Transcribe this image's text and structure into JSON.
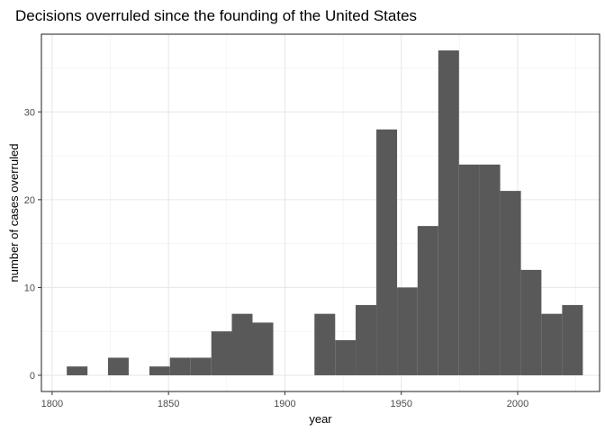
{
  "chart_data": {
    "type": "bar",
    "title": "Decisions overruled since the founding of the United States",
    "xlabel": "year",
    "ylabel": "number of cases overruled",
    "xlim": [
      1795.4,
      2035.2
    ],
    "ylim": [
      -1.85,
      38.85
    ],
    "x_ticks": [
      1800,
      1850,
      1900,
      1950,
      2000
    ],
    "y_ticks": [
      0,
      10,
      20,
      30
    ],
    "grid": true,
    "legend": "none",
    "bar_color": "#595959",
    "bins": [
      {
        "start": 1806.3,
        "end": 1815.2,
        "value": 1
      },
      {
        "start": 1815.2,
        "end": 1824.0,
        "value": 0
      },
      {
        "start": 1824.0,
        "end": 1832.9,
        "value": 2
      },
      {
        "start": 1832.9,
        "end": 1841.8,
        "value": 0
      },
      {
        "start": 1841.8,
        "end": 1850.6,
        "value": 1
      },
      {
        "start": 1850.6,
        "end": 1859.5,
        "value": 2
      },
      {
        "start": 1859.5,
        "end": 1868.4,
        "value": 2
      },
      {
        "start": 1868.4,
        "end": 1877.2,
        "value": 5
      },
      {
        "start": 1877.2,
        "end": 1886.1,
        "value": 7
      },
      {
        "start": 1886.1,
        "end": 1895.0,
        "value": 6
      },
      {
        "start": 1895.0,
        "end": 1903.8,
        "value": 0
      },
      {
        "start": 1903.8,
        "end": 1912.7,
        "value": 0
      },
      {
        "start": 1912.7,
        "end": 1921.6,
        "value": 7
      },
      {
        "start": 1921.6,
        "end": 1930.4,
        "value": 4
      },
      {
        "start": 1930.4,
        "end": 1939.3,
        "value": 8
      },
      {
        "start": 1939.3,
        "end": 1948.2,
        "value": 28
      },
      {
        "start": 1948.2,
        "end": 1957.0,
        "value": 10
      },
      {
        "start": 1957.0,
        "end": 1965.9,
        "value": 17
      },
      {
        "start": 1965.9,
        "end": 1974.8,
        "value": 37
      },
      {
        "start": 1974.8,
        "end": 1983.6,
        "value": 24
      },
      {
        "start": 1983.6,
        "end": 1992.5,
        "value": 24
      },
      {
        "start": 1992.5,
        "end": 2001.4,
        "value": 21
      },
      {
        "start": 2001.4,
        "end": 2010.2,
        "value": 12
      },
      {
        "start": 2010.2,
        "end": 2019.1,
        "value": 7
      },
      {
        "start": 2019.1,
        "end": 2028.0,
        "value": 8
      }
    ]
  }
}
